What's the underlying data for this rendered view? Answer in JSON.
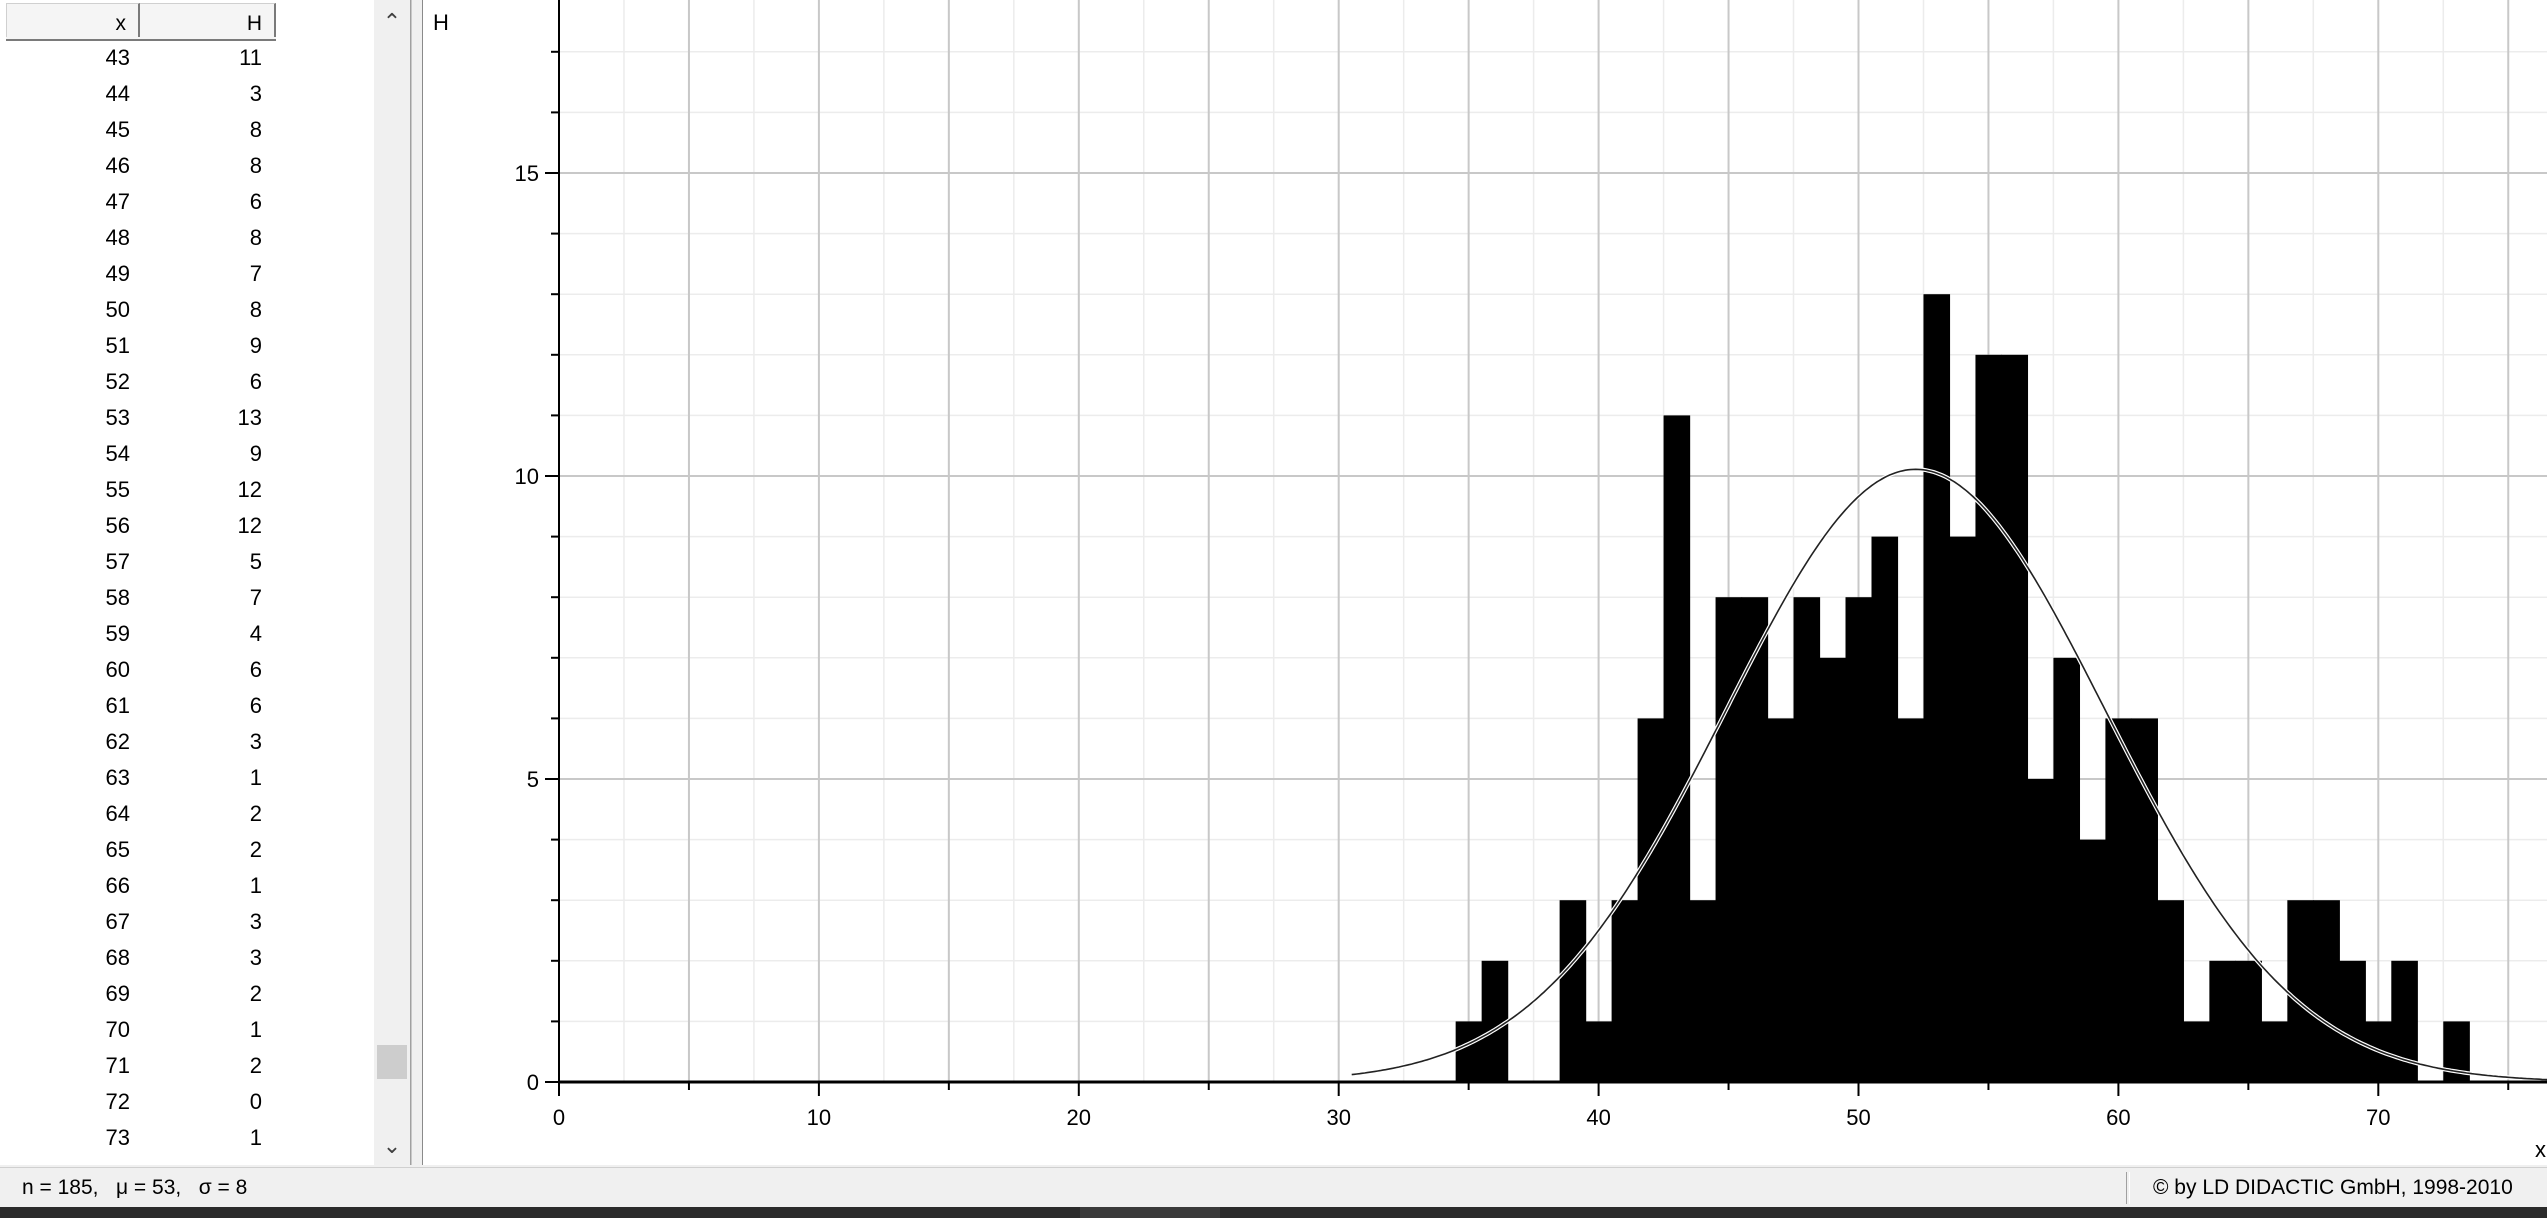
{
  "table": {
    "columns": {
      "x": "x",
      "h": "H"
    },
    "rows": [
      {
        "x": "43",
        "h": "11"
      },
      {
        "x": "44",
        "h": "3"
      },
      {
        "x": "45",
        "h": "8"
      },
      {
        "x": "46",
        "h": "8"
      },
      {
        "x": "47",
        "h": "6"
      },
      {
        "x": "48",
        "h": "8"
      },
      {
        "x": "49",
        "h": "7"
      },
      {
        "x": "50",
        "h": "8"
      },
      {
        "x": "51",
        "h": "9"
      },
      {
        "x": "52",
        "h": "6"
      },
      {
        "x": "53",
        "h": "13"
      },
      {
        "x": "54",
        "h": "9"
      },
      {
        "x": "55",
        "h": "12"
      },
      {
        "x": "56",
        "h": "12"
      },
      {
        "x": "57",
        "h": "5"
      },
      {
        "x": "58",
        "h": "7"
      },
      {
        "x": "59",
        "h": "4"
      },
      {
        "x": "60",
        "h": "6"
      },
      {
        "x": "61",
        "h": "6"
      },
      {
        "x": "62",
        "h": "3"
      },
      {
        "x": "63",
        "h": "1"
      },
      {
        "x": "64",
        "h": "2"
      },
      {
        "x": "65",
        "h": "2"
      },
      {
        "x": "66",
        "h": "1"
      },
      {
        "x": "67",
        "h": "3"
      },
      {
        "x": "68",
        "h": "3"
      },
      {
        "x": "69",
        "h": "2"
      },
      {
        "x": "70",
        "h": "1"
      },
      {
        "x": "71",
        "h": "2"
      },
      {
        "x": "72",
        "h": "0"
      },
      {
        "x": "73",
        "h": "1"
      }
    ],
    "scroll_up_glyph": "⌃",
    "scroll_down_glyph": "⌄"
  },
  "status": {
    "stats": "n = 185,   μ = 53,   σ = 8",
    "copyright": "© by LD DIDACTIC GmbH, 1998-2010"
  },
  "chart_data": {
    "type": "bar",
    "ylabel": "H",
    "xlabel": "x",
    "xlim": [
      0,
      76
    ],
    "ylim": [
      0,
      17.5
    ],
    "x_ticks": [
      0,
      10,
      20,
      30,
      40,
      50,
      60,
      70
    ],
    "y_ticks": [
      0,
      5,
      10,
      15
    ],
    "grid": true,
    "bars": [
      {
        "x": 35,
        "h": 1
      },
      {
        "x": 36,
        "h": 2
      },
      {
        "x": 37,
        "h": 0
      },
      {
        "x": 38,
        "h": 0
      },
      {
        "x": 39,
        "h": 3
      },
      {
        "x": 40,
        "h": 1
      },
      {
        "x": 41,
        "h": 3
      },
      {
        "x": 42,
        "h": 6
      },
      {
        "x": 43,
        "h": 11
      },
      {
        "x": 44,
        "h": 3
      },
      {
        "x": 45,
        "h": 8
      },
      {
        "x": 46,
        "h": 8
      },
      {
        "x": 47,
        "h": 6
      },
      {
        "x": 48,
        "h": 8
      },
      {
        "x": 49,
        "h": 7
      },
      {
        "x": 50,
        "h": 8
      },
      {
        "x": 51,
        "h": 9
      },
      {
        "x": 52,
        "h": 6
      },
      {
        "x": 53,
        "h": 13
      },
      {
        "x": 54,
        "h": 9
      },
      {
        "x": 55,
        "h": 12
      },
      {
        "x": 56,
        "h": 12
      },
      {
        "x": 57,
        "h": 5
      },
      {
        "x": 58,
        "h": 7
      },
      {
        "x": 59,
        "h": 4
      },
      {
        "x": 60,
        "h": 6
      },
      {
        "x": 61,
        "h": 6
      },
      {
        "x": 62,
        "h": 3
      },
      {
        "x": 63,
        "h": 1
      },
      {
        "x": 64,
        "h": 2
      },
      {
        "x": 65,
        "h": 2
      },
      {
        "x": 66,
        "h": 1
      },
      {
        "x": 67,
        "h": 3
      },
      {
        "x": 68,
        "h": 3
      },
      {
        "x": 69,
        "h": 2
      },
      {
        "x": 70,
        "h": 1
      },
      {
        "x": 71,
        "h": 2
      },
      {
        "x": 72,
        "h": 0
      },
      {
        "x": 73,
        "h": 1
      }
    ],
    "fit_curve": {
      "type": "gaussian",
      "mu": 52.2,
      "sigma": 7.3,
      "n": 185
    }
  }
}
